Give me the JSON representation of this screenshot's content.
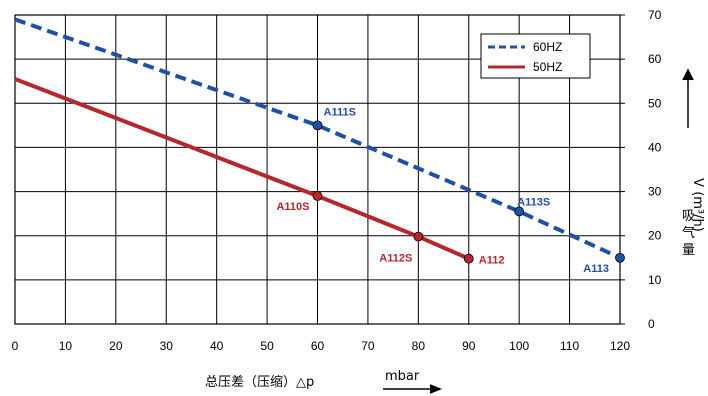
{
  "chart_data": {
    "type": "line",
    "xlabel": "总压差（压缩）△p",
    "xunit": "mbar",
    "ylabel": "V (m³/h)",
    "ylabel_cn": [
      "吸",
      "气",
      "量"
    ],
    "xlim": [
      0,
      120
    ],
    "ylim": [
      0,
      70
    ],
    "x_ticks": [
      0,
      10,
      20,
      30,
      40,
      50,
      60,
      70,
      80,
      90,
      100,
      110,
      120
    ],
    "y_ticks": [
      0,
      10,
      20,
      30,
      40,
      50,
      60,
      70
    ],
    "grid": true,
    "legend_position": "top-right",
    "series": [
      {
        "name": "60HZ",
        "style": "dashed",
        "color": "#1f4fa6",
        "x": [
          0,
          60,
          100,
          120
        ],
        "y": [
          69,
          45,
          25.5,
          15
        ],
        "points": [
          {
            "label": "A111S",
            "x": 60,
            "y": 45
          },
          {
            "label": "A113S",
            "x": 100,
            "y": 25.5
          },
          {
            "label": "A113",
            "x": 120,
            "y": 15
          }
        ]
      },
      {
        "name": "50HZ",
        "style": "solid",
        "color": "#b5272d",
        "x": [
          0,
          60,
          80,
          90
        ],
        "y": [
          55.5,
          29,
          19.8,
          14.8
        ],
        "points": [
          {
            "label": "A110S",
            "x": 60,
            "y": 29
          },
          {
            "label": "A112S",
            "x": 80,
            "y": 19.8
          },
          {
            "label": "A112",
            "x": 90,
            "y": 14.8
          }
        ]
      }
    ]
  }
}
